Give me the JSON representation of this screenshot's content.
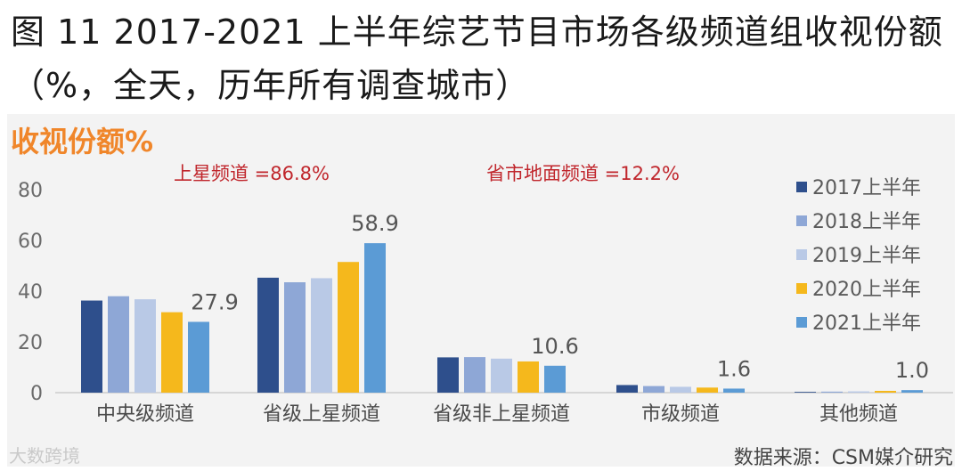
{
  "title": "图 11 2017-2021 上半年综艺节目市场各级频道组收视份额（%，全天，历年所有调查城市）",
  "source": "数据来源：CSM媒介研究",
  "watermark": "大数跨境",
  "chart_data": {
    "type": "bar",
    "ylabel": "收视份额%",
    "ylim": [
      0,
      80
    ],
    "yticks": [
      0,
      20,
      40,
      60,
      80
    ],
    "categories": [
      "中央级频道",
      "省级上星频道",
      "省级非上星频道",
      "市级频道",
      "其他频道"
    ],
    "series": [
      {
        "name": "2017上半年",
        "color": "#2e4f8c",
        "values": [
          36.3,
          45.3,
          13.9,
          3.0,
          0.3
        ]
      },
      {
        "name": "2018上半年",
        "color": "#8ea7d6",
        "values": [
          38.0,
          43.5,
          14.0,
          2.6,
          0.4
        ]
      },
      {
        "name": "2019上半年",
        "color": "#b9c9e6",
        "values": [
          36.8,
          45.1,
          13.4,
          2.3,
          0.5
        ]
      },
      {
        "name": "2020上半年",
        "color": "#f5b81c",
        "values": [
          31.7,
          51.5,
          12.3,
          2.0,
          0.7
        ]
      },
      {
        "name": "2021上半年",
        "color": "#5b9bd5",
        "values": [
          27.9,
          58.9,
          10.6,
          1.6,
          1.0
        ]
      }
    ],
    "data_labels": [
      {
        "category": "中央级频道",
        "text": "27.9"
      },
      {
        "category": "省级上星频道",
        "text": "58.9"
      },
      {
        "category": "省级非上星频道",
        "text": "10.6"
      },
      {
        "category": "市级频道",
        "text": "1.6"
      },
      {
        "category": "其他频道",
        "text": "1.0"
      }
    ],
    "annotations": [
      {
        "text": "上星频道 =86.8%"
      },
      {
        "text": "省市地面频道 =12.2%"
      }
    ],
    "legend_position": "right",
    "grid": false
  }
}
